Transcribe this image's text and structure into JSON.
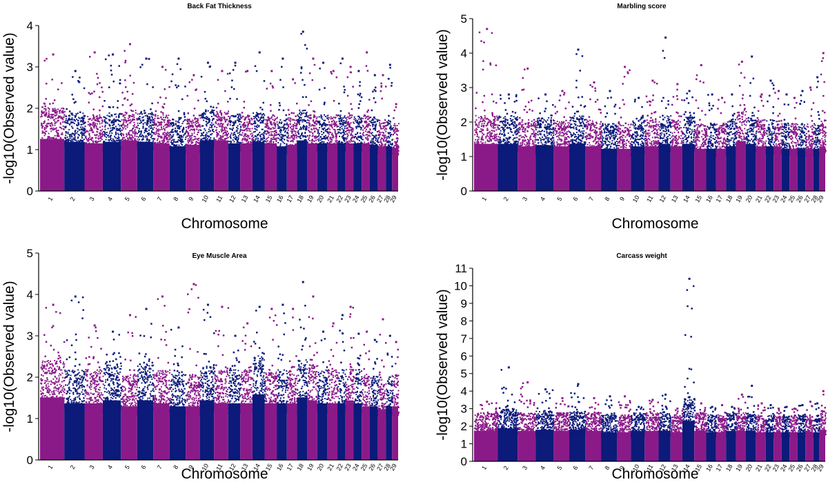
{
  "colors": {
    "odd_chromosome": "#8b1a89",
    "even_chromosome": "#0c1a7a"
  },
  "chart_data": [
    {
      "type": "scatter",
      "subtype": "manhattan",
      "title": "Back Fat Thickness",
      "xlabel": "Chromosome",
      "ylabel": "-log10(Observed value)",
      "ylim": [
        0,
        4
      ],
      "yticks": [
        0,
        1,
        2,
        3,
        4
      ],
      "grid": false,
      "chromosomes": [
        "1",
        "2",
        "3",
        "4",
        "5",
        "6",
        "7",
        "8",
        "9",
        "10",
        "11",
        "12",
        "13",
        "14",
        "15",
        "16",
        "17",
        "18",
        "19",
        "20",
        "21",
        "22",
        "23",
        "24",
        "25",
        "26",
        "27",
        "28",
        "29"
      ],
      "baseline_max": [
        1.75,
        1.65,
        1.6,
        1.65,
        1.7,
        1.65,
        1.6,
        1.5,
        1.55,
        1.7,
        1.7,
        1.6,
        1.6,
        1.65,
        1.6,
        1.5,
        1.55,
        1.7,
        1.6,
        1.6,
        1.6,
        1.6,
        1.6,
        1.6,
        1.6,
        1.55,
        1.5,
        1.5,
        1.45
      ],
      "peaks": [
        3.3,
        2.9,
        3.35,
        3.3,
        3.55,
        3.2,
        3.0,
        3.2,
        2.8,
        3.1,
        2.9,
        3.1,
        2.9,
        3.35,
        2.9,
        3.2,
        2.7,
        3.85,
        3.2,
        3.1,
        2.9,
        3.2,
        3.0,
        2.9,
        3.35,
        2.8,
        2.8,
        3.05,
        2.1
      ]
    },
    {
      "type": "scatter",
      "subtype": "manhattan",
      "title": "Marbling score",
      "xlabel": "Chromosome",
      "ylabel": "-log10(Observed value)",
      "ylim": [
        0,
        5
      ],
      "yticks": [
        0,
        1,
        2,
        3,
        4,
        5
      ],
      "grid": false,
      "chromosomes": [
        "1",
        "2",
        "3",
        "4",
        "5",
        "6",
        "7",
        "8",
        "9",
        "10",
        "11",
        "12",
        "13",
        "14",
        "15",
        "16",
        "17",
        "18",
        "19",
        "20",
        "21",
        "22",
        "23",
        "24",
        "25",
        "26",
        "27",
        "28",
        "29"
      ],
      "baseline_max": [
        1.9,
        1.9,
        1.8,
        1.85,
        1.8,
        1.9,
        1.8,
        1.7,
        1.7,
        1.8,
        1.8,
        1.9,
        1.8,
        1.9,
        1.7,
        1.7,
        1.7,
        1.8,
        2.0,
        1.9,
        1.8,
        1.8,
        1.8,
        1.7,
        1.7,
        1.7,
        1.7,
        1.7,
        1.8
      ],
      "peaks": [
        4.7,
        2.8,
        3.55,
        2.8,
        2.9,
        4.1,
        3.15,
        2.9,
        3.6,
        2.7,
        3.2,
        4.45,
        3.1,
        2.9,
        3.65,
        2.8,
        2.7,
        2.8,
        3.75,
        3.9,
        2.8,
        3.2,
        2.9,
        2.8,
        2.7,
        2.9,
        3.0,
        3.3,
        4.0
      ]
    },
    {
      "type": "scatter",
      "subtype": "manhattan",
      "title": "Eye Muscle Area",
      "xlabel": "Chromosome",
      "ylabel": "-log10(Observed value)",
      "ylim": [
        0,
        5
      ],
      "yticks": [
        0,
        1,
        2,
        3,
        4,
        5
      ],
      "grid": false,
      "chromosomes": [
        "1",
        "2",
        "3",
        "4",
        "5",
        "6",
        "7",
        "8",
        "9",
        "10",
        "11",
        "12",
        "13",
        "14",
        "15",
        "16",
        "17",
        "18",
        "19",
        "20",
        "21",
        "22",
        "23",
        "24",
        "25",
        "26",
        "27",
        "28",
        "29"
      ],
      "baseline_max": [
        2.1,
        1.9,
        1.9,
        2.0,
        1.8,
        2.0,
        1.9,
        1.8,
        1.8,
        2.0,
        1.9,
        1.9,
        1.9,
        2.2,
        1.9,
        1.9,
        1.9,
        2.1,
        2.0,
        1.9,
        1.9,
        1.9,
        2.0,
        1.9,
        1.8,
        1.8,
        1.7,
        1.8,
        1.8
      ],
      "peaks": [
        3.75,
        3.95,
        3.25,
        3.1,
        3.5,
        3.65,
        3.95,
        3.2,
        4.25,
        3.75,
        3.7,
        3.0,
        3.3,
        3.7,
        3.65,
        3.75,
        3.65,
        4.3,
        3.95,
        3.1,
        3.3,
        3.5,
        3.7,
        3.05,
        3.1,
        2.9,
        3.4,
        3.0,
        2.85
      ]
    },
    {
      "type": "scatter",
      "subtype": "manhattan",
      "title": "Carcass weight",
      "xlabel": "Chromosome",
      "ylabel": "-log10(Observed value)",
      "ylim": [
        0,
        11
      ],
      "yticks": [
        0,
        1,
        2,
        3,
        4,
        5,
        6,
        7,
        8,
        9,
        10,
        11
      ],
      "grid": false,
      "chromosomes": [
        "1",
        "2",
        "3",
        "4",
        "5",
        "6",
        "7",
        "8",
        "9",
        "10",
        "11",
        "12",
        "13",
        "14",
        "15",
        "16",
        "17",
        "18",
        "19",
        "20",
        "21",
        "22",
        "23",
        "24",
        "25",
        "26",
        "27",
        "28",
        "29"
      ],
      "baseline_max": [
        2.4,
        2.6,
        2.4,
        2.5,
        2.4,
        2.5,
        2.4,
        2.3,
        2.3,
        2.4,
        2.4,
        2.4,
        2.3,
        3.2,
        2.4,
        2.3,
        2.3,
        2.4,
        2.4,
        2.4,
        2.3,
        2.3,
        2.3,
        2.3,
        2.3,
        2.3,
        2.3,
        2.3,
        2.5
      ],
      "peaks": [
        3.4,
        5.35,
        4.5,
        4.1,
        3.6,
        4.4,
        3.6,
        3.7,
        3.7,
        3.1,
        3.5,
        3.8,
        3.0,
        10.4,
        3.3,
        3.1,
        3.2,
        3.1,
        3.8,
        4.3,
        3.3,
        3.2,
        3.0,
        3.1,
        3.0,
        3.2,
        3.4,
        3.3,
        4.0
      ]
    }
  ]
}
